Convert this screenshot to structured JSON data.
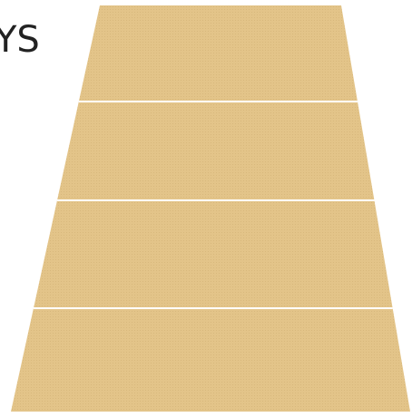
{
  "canvas": {
    "background": "#ffffff"
  },
  "clipped_text": {
    "label": "YS",
    "color": "#222222"
  },
  "pyramid": {
    "fill_color": "#e3c489",
    "texture_color": "#c9a86a",
    "divider_color": "#ffffff",
    "tier_count": 4,
    "tiers": [
      {
        "index": 1
      },
      {
        "index": 2
      },
      {
        "index": 3
      },
      {
        "index": 4
      }
    ]
  }
}
